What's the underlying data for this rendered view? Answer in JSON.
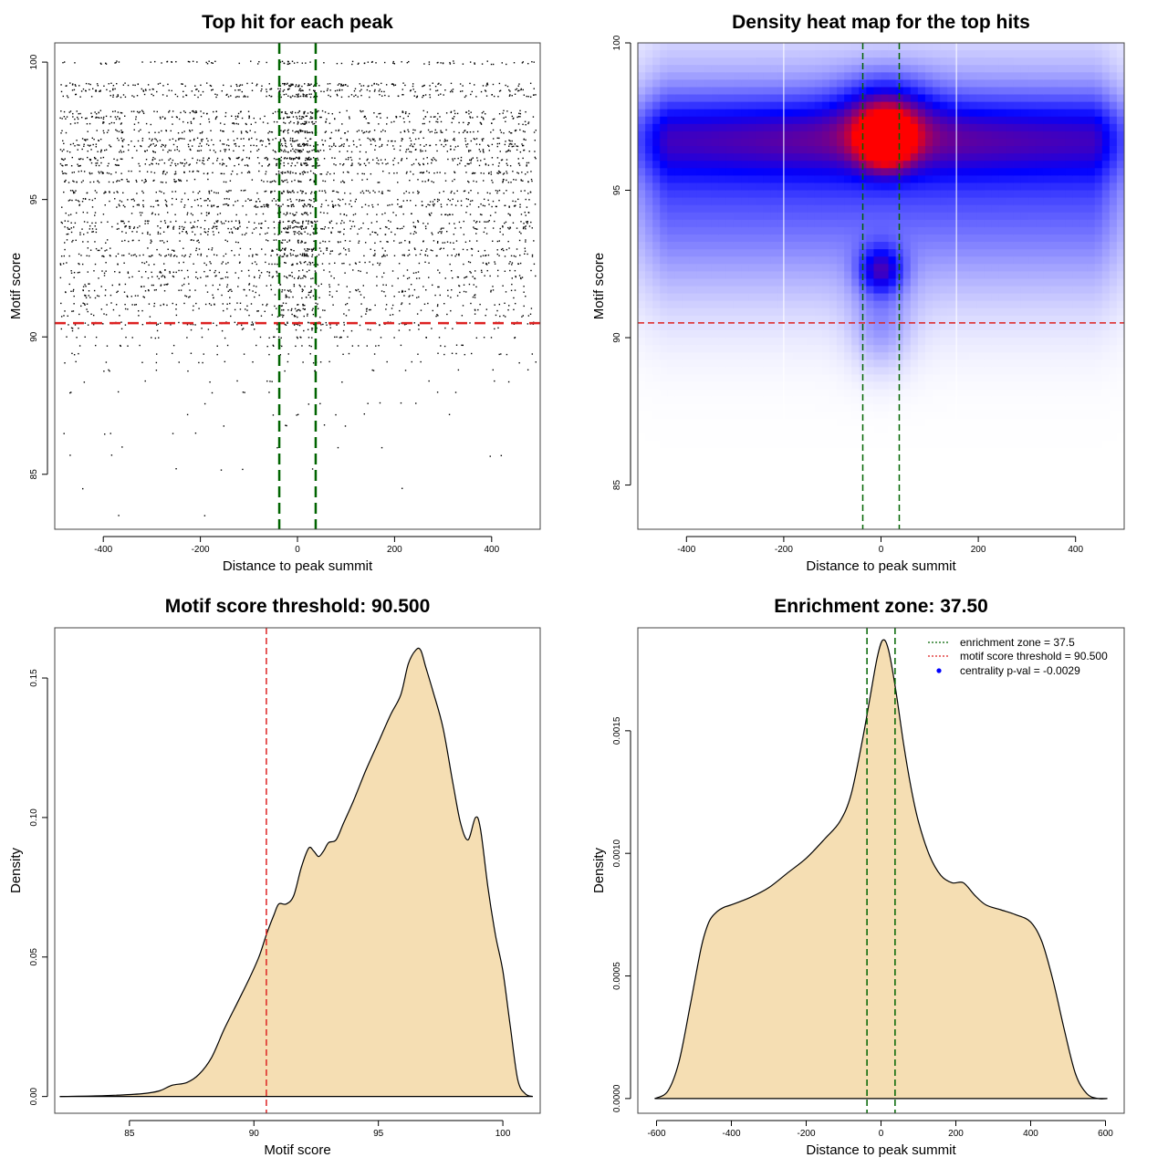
{
  "colors": {
    "threshold_line": "#dd2222",
    "zone_line": "#006400",
    "density_fill": "#f5deb3",
    "density_line": "#000000",
    "heat_low": "#ffffff",
    "heat_mid": "#0000ff",
    "heat_high": "#ff0000",
    "legend_point": "#0000ff"
  },
  "chart_data": [
    {
      "id": "scatter",
      "type": "scatter",
      "title": "Top hit for each peak",
      "xlabel": "Distance to peak summit",
      "ylabel": "Motif score",
      "xlim": [
        -500,
        500
      ],
      "ylim": [
        83,
        100.7
      ],
      "xticks": [
        -400,
        -200,
        0,
        200,
        400
      ],
      "yticks": [
        85,
        90,
        95,
        100
      ],
      "xtick_labels": [
        "-400",
        "-200",
        "0",
        "200",
        "400"
      ],
      "ytick_labels": [
        "85",
        "90",
        "95",
        "100"
      ],
      "threshold": 90.5,
      "enrichment_zone": [
        -37.5,
        37.5
      ],
      "point_density_note": "dense horizontal bands at discrete motif scores between ~90 and 100, sparse below threshold",
      "score_bands": [
        100.0,
        99.2,
        99.0,
        98.8,
        98.2,
        98.0,
        97.8,
        97.5,
        97.2,
        97.0,
        96.8,
        96.5,
        96.3,
        96.0,
        95.7,
        95.3,
        95.0,
        94.8,
        94.5,
        94.2,
        94.0,
        93.8,
        93.5,
        93.2,
        93.0,
        92.7,
        92.4,
        92.2,
        91.9,
        91.7,
        91.5,
        91.2,
        91.0,
        90.8,
        90.5,
        90.3,
        90.0,
        89.7,
        89.4,
        89.1,
        88.8,
        88.4,
        88.0,
        87.6,
        87.2,
        86.8,
        86.5,
        86.0,
        85.7,
        85.2,
        84.5,
        83.5
      ],
      "band_weights": [
        0.55,
        0.8,
        0.7,
        0.75,
        0.7,
        0.75,
        0.55,
        0.85,
        0.8,
        0.85,
        0.75,
        0.9,
        0.8,
        0.85,
        0.7,
        0.75,
        0.6,
        0.8,
        0.55,
        0.7,
        0.85,
        0.6,
        0.55,
        0.55,
        0.8,
        0.55,
        0.45,
        0.5,
        0.4,
        0.45,
        0.4,
        0.45,
        0.35,
        0.3,
        0.55,
        0.2,
        0.22,
        0.18,
        0.15,
        0.12,
        0.08,
        0.06,
        0.05,
        0.04,
        0.04,
        0.03,
        0.03,
        0.02,
        0.02,
        0.02,
        0.01,
        0.01
      ]
    },
    {
      "id": "heatmap",
      "type": "heatmap",
      "title": "Density heat map for the top hits",
      "xlabel": "Distance to peak summit",
      "ylabel": "Motif score",
      "xlim": [
        -500,
        500
      ],
      "ylim": [
        83.5,
        100
      ],
      "xticks": [
        -400,
        -200,
        0,
        200,
        400
      ],
      "yticks": [
        85,
        90,
        95,
        100
      ],
      "xtick_labels": [
        "-400",
        "-200",
        "0",
        "200",
        "400"
      ],
      "ytick_labels": [
        "85",
        "90",
        "95",
        "100"
      ],
      "threshold": 90.5,
      "enrichment_zone": [
        -37.5,
        37.5
      ],
      "white_gridlines_x": [
        -200,
        155
      ],
      "hotspots": [
        {
          "x": 10,
          "y": 96.7,
          "intensity": 1.0,
          "label": "max density (red)"
        },
        {
          "x": 0,
          "y": 92.3,
          "intensity": 0.55,
          "label": "secondary mode"
        },
        {
          "x": -300,
          "y": 96.8,
          "intensity": 0.5,
          "label": "horizontal band left"
        },
        {
          "x": 250,
          "y": 96.8,
          "intensity": 0.5,
          "label": "horizontal band right"
        }
      ]
    },
    {
      "id": "score-density",
      "type": "area",
      "title": "Motif score threshold: 90.500",
      "xlabel": "Motif score",
      "ylabel": "Density",
      "xlim": [
        82,
        101.5
      ],
      "ylim": [
        -0.006,
        0.168
      ],
      "xticks": [
        85,
        90,
        95,
        100
      ],
      "yticks": [
        0.0,
        0.05,
        0.1,
        0.15
      ],
      "xtick_labels": [
        "85",
        "90",
        "95",
        "100"
      ],
      "ytick_labels": [
        "0.00",
        "0.05",
        "0.10",
        "0.15"
      ],
      "threshold": 90.5,
      "x": [
        82.2,
        84,
        85.5,
        86.2,
        86.7,
        87.3,
        87.8,
        88.3,
        88.8,
        89.3,
        89.8,
        90.2,
        90.5,
        90.8,
        91.0,
        91.3,
        91.6,
        91.9,
        92.2,
        92.4,
        92.6,
        92.8,
        93.0,
        93.3,
        93.6,
        94.0,
        94.5,
        95.0,
        95.5,
        95.9,
        96.2,
        96.5,
        96.7,
        96.9,
        97.2,
        97.6,
        98.0,
        98.3,
        98.6,
        98.9,
        99.1,
        99.4,
        99.7,
        100.0,
        100.3,
        100.6,
        100.9,
        101.2
      ],
      "y": [
        0.0,
        0.0003,
        0.001,
        0.002,
        0.004,
        0.005,
        0.008,
        0.014,
        0.024,
        0.033,
        0.042,
        0.05,
        0.058,
        0.065,
        0.069,
        0.069,
        0.072,
        0.082,
        0.089,
        0.088,
        0.086,
        0.088,
        0.091,
        0.092,
        0.098,
        0.106,
        0.117,
        0.127,
        0.137,
        0.144,
        0.155,
        0.16,
        0.16,
        0.154,
        0.145,
        0.132,
        0.112,
        0.098,
        0.092,
        0.1,
        0.096,
        0.075,
        0.058,
        0.045,
        0.025,
        0.006,
        0.001,
        0.0
      ]
    },
    {
      "id": "distance-density",
      "type": "area",
      "title": "Enrichment zone: 37.50",
      "xlabel": "Distance to peak summit",
      "ylabel": "Density",
      "xlim": [
        -650,
        650
      ],
      "ylim": [
        -6e-05,
        0.00192
      ],
      "xticks": [
        -600,
        -400,
        -200,
        0,
        200,
        400,
        600
      ],
      "yticks": [
        0.0,
        0.0005,
        0.001,
        0.0015
      ],
      "xtick_labels": [
        "-600",
        "-400",
        "-200",
        "0",
        "200",
        "400",
        "600"
      ],
      "ytick_labels": [
        "0.0000",
        "0.0005",
        "0.0010",
        "0.0015"
      ],
      "enrichment_zone": [
        -37.5,
        37.5
      ],
      "x": [
        -605,
        -570,
        -540,
        -510,
        -480,
        -460,
        -440,
        -420,
        -400,
        -350,
        -300,
        -250,
        -200,
        -150,
        -110,
        -80,
        -50,
        -30,
        -10,
        5,
        20,
        40,
        60,
        80,
        100,
        130,
        160,
        190,
        220,
        250,
        280,
        320,
        360,
        400,
        430,
        460,
        490,
        520,
        550,
        580,
        605
      ],
      "y": [
        0.0,
        3e-05,
        0.00015,
        0.00038,
        0.00062,
        0.00072,
        0.00076,
        0.00078,
        0.00079,
        0.00082,
        0.00086,
        0.00092,
        0.00098,
        0.00106,
        0.00113,
        0.00124,
        0.00146,
        0.00163,
        0.0018,
        0.00187,
        0.00183,
        0.00166,
        0.00145,
        0.00127,
        0.00113,
        0.00099,
        0.00091,
        0.00088,
        0.00088,
        0.00083,
        0.00079,
        0.00077,
        0.00075,
        0.00072,
        0.00064,
        0.00048,
        0.00028,
        0.0001,
        2e-05,
        0.0,
        0.0
      ]
    }
  ],
  "legend": {
    "items": [
      {
        "label": "enrichment zone = 37.5",
        "style": "dotted-line",
        "color": "#006400"
      },
      {
        "label": "motif score threshold = 90.500",
        "style": "dotted-line",
        "color": "#dd2222"
      },
      {
        "label": "centrality p-val = -0.0029",
        "style": "point",
        "color": "#0000ff"
      }
    ]
  }
}
